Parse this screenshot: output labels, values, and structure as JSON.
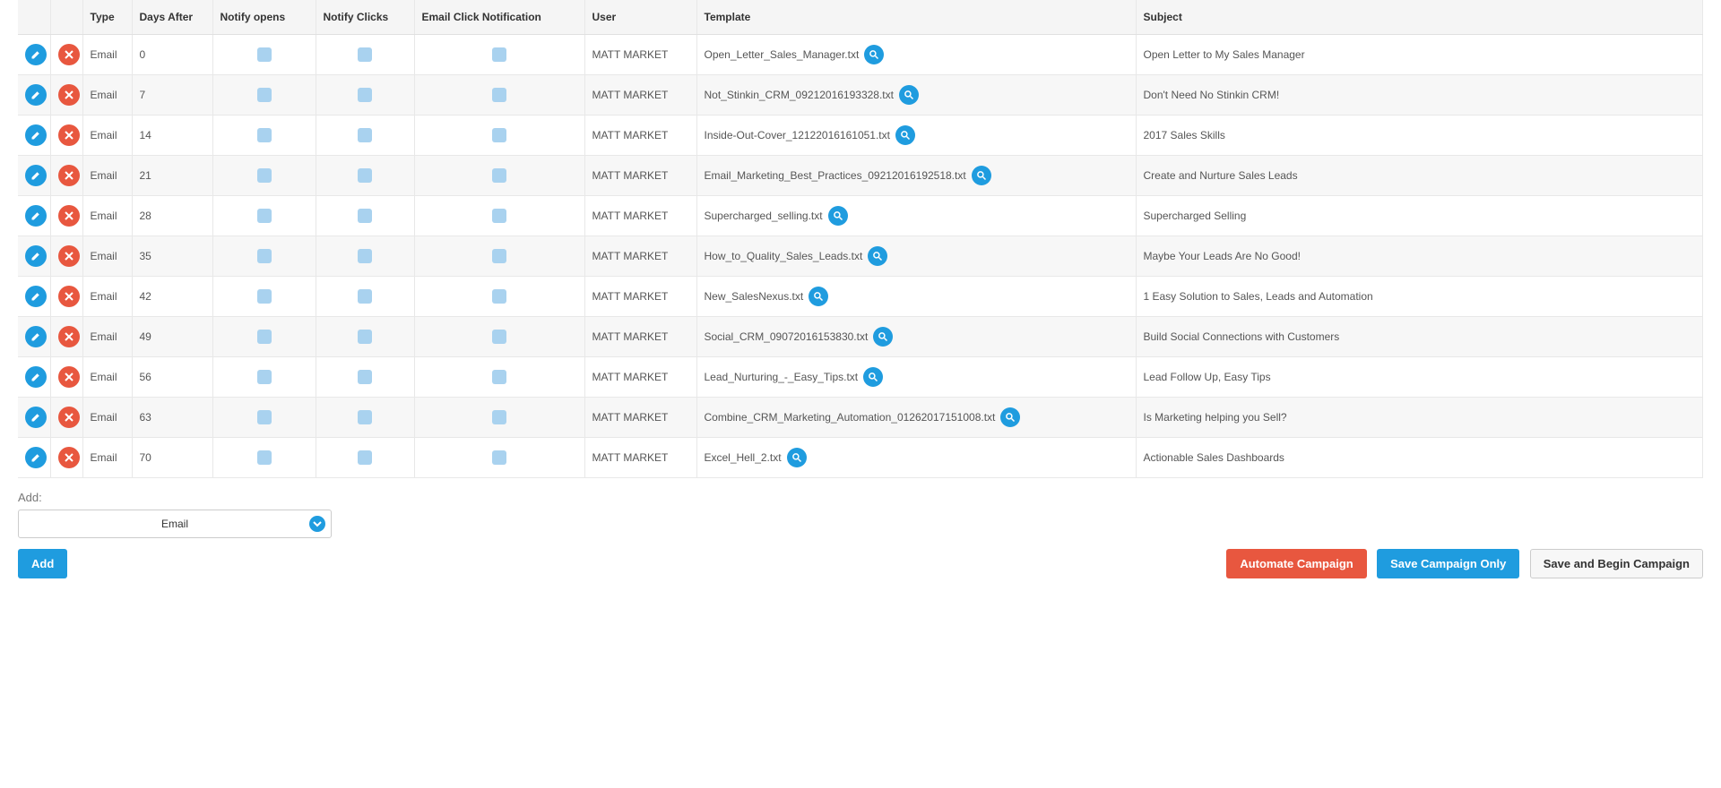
{
  "columns": {
    "type": "Type",
    "daysAfter": "Days After",
    "notifyOpens": "Notify opens",
    "notifyClicks": "Notify Clicks",
    "emailClickNotification": "Email Click Notification",
    "user": "User",
    "template": "Template",
    "subject": "Subject"
  },
  "rows": [
    {
      "type": "Email",
      "days": "0",
      "user": "MATT MARKET",
      "template": "Open_Letter_Sales_Manager.txt",
      "subject": "Open Letter to My Sales Manager"
    },
    {
      "type": "Email",
      "days": "7",
      "user": "MATT MARKET",
      "template": "Not_Stinkin_CRM_09212016193328.txt",
      "subject": "Don't Need No Stinkin CRM!"
    },
    {
      "type": "Email",
      "days": "14",
      "user": "MATT MARKET",
      "template": "Inside-Out-Cover_12122016161051.txt",
      "subject": "2017 Sales Skills"
    },
    {
      "type": "Email",
      "days": "21",
      "user": "MATT MARKET",
      "template": "Email_Marketing_Best_Practices_09212016192518.txt",
      "subject": "Create and Nurture Sales Leads"
    },
    {
      "type": "Email",
      "days": "28",
      "user": "MATT MARKET",
      "template": "Supercharged_selling.txt",
      "subject": "Supercharged Selling"
    },
    {
      "type": "Email",
      "days": "35",
      "user": "MATT MARKET",
      "template": "How_to_Quality_Sales_Leads.txt",
      "subject": "Maybe Your Leads Are No Good!"
    },
    {
      "type": "Email",
      "days": "42",
      "user": "MATT MARKET",
      "template": "New_SalesNexus.txt",
      "subject": "1 Easy Solution to Sales, Leads and Automation"
    },
    {
      "type": "Email",
      "days": "49",
      "user": "MATT MARKET",
      "template": "Social_CRM_09072016153830.txt",
      "subject": "Build Social Connections with Customers"
    },
    {
      "type": "Email",
      "days": "56",
      "user": "MATT MARKET",
      "template": "Lead_Nurturing_-_Easy_Tips.txt",
      "subject": "Lead Follow Up, Easy Tips"
    },
    {
      "type": "Email",
      "days": "63",
      "user": "MATT MARKET",
      "template": "Combine_CRM_Marketing_Automation_01262017151008.txt",
      "subject": "Is Marketing helping you Sell?"
    },
    {
      "type": "Email",
      "days": "70",
      "user": "MATT MARKET",
      "template": "Excel_Hell_2.txt",
      "subject": "Actionable Sales Dashboards"
    }
  ],
  "addSection": {
    "label": "Add:",
    "selected": "Email",
    "addButton": "Add"
  },
  "footerButtons": {
    "automate": "Automate Campaign",
    "saveOnly": "Save Campaign Only",
    "saveBegin": "Save and Begin Campaign"
  }
}
